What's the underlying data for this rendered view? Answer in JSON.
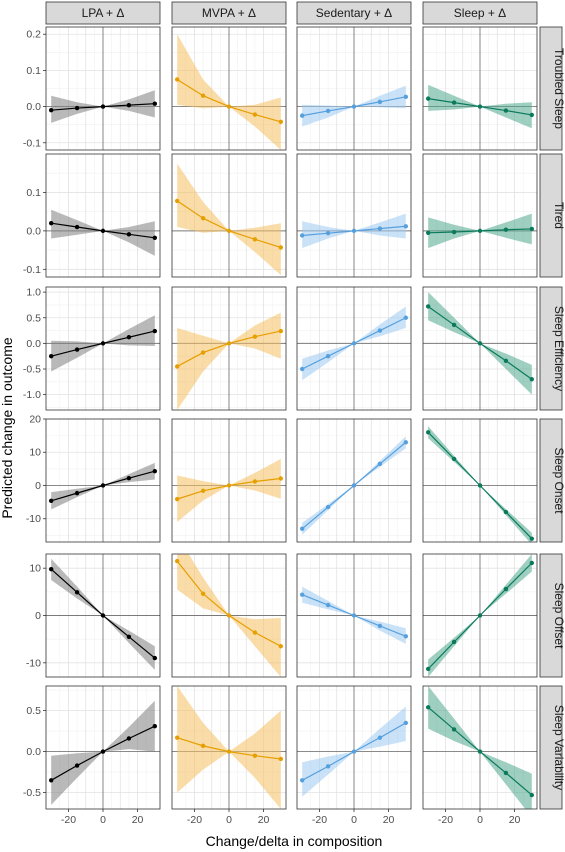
{
  "chart_data": {
    "type": "line",
    "title": "",
    "xlabel": "Change/delta in composition",
    "ylabel": "Predicted change in outcome",
    "x": [
      -30,
      -15,
      0,
      15,
      30
    ],
    "x_ticks": [
      "-20",
      "0",
      "20"
    ],
    "xlim": [
      -33,
      33
    ],
    "grid": true,
    "legend": "none",
    "columns": [
      {
        "label": "LPA + Δ",
        "color": "#000000",
        "ribbon_color": "#808080"
      },
      {
        "label": "MVPA + Δ",
        "color": "#E69F00",
        "ribbon_color": "#F5C060"
      },
      {
        "label": "Sedentary + Δ",
        "color": "#56A0DE",
        "ribbon_color": "#9ECAF2"
      },
      {
        "label": "Sleep + Δ",
        "color": "#0B7A5C",
        "ribbon_color": "#4FA88C"
      }
    ],
    "rows": [
      {
        "label": "Troubled Sleep",
        "ylim": [
          -0.12,
          0.22
        ],
        "y_ticks": [
          "0.2",
          "0.1",
          "0.0",
          "-0.1"
        ],
        "series": [
          {
            "values": [
              -0.01,
              -0.004,
              0,
              0.004,
              0.008
            ],
            "lower": [
              -0.045,
              -0.02,
              0,
              -0.012,
              -0.03
            ],
            "upper": [
              0.03,
              0.012,
              0,
              0.02,
              0.045
            ]
          },
          {
            "values": [
              0.075,
              0.03,
              0,
              -0.022,
              -0.042
            ],
            "lower": [
              0.005,
              -0.005,
              0,
              -0.055,
              -0.12
            ],
            "upper": [
              0.2,
              0.075,
              0,
              0.005,
              0.025
            ]
          },
          {
            "values": [
              -0.025,
              -0.012,
              0,
              0.013,
              0.027
            ],
            "lower": [
              -0.055,
              -0.03,
              0,
              -0.002,
              -0.005
            ],
            "upper": [
              0.005,
              0.003,
              0,
              0.03,
              0.058
            ]
          },
          {
            "values": [
              0.022,
              0.011,
              0,
              -0.011,
              -0.023
            ],
            "lower": [
              -0.012,
              -0.008,
              0,
              -0.03,
              -0.06
            ],
            "upper": [
              0.06,
              0.03,
              0,
              0.008,
              0.012
            ]
          }
        ]
      },
      {
        "label": "Tired",
        "ylim": [
          -0.12,
          0.2
        ],
        "y_ticks": [
          "0.1",
          "0.0",
          "-0.1"
        ],
        "series": [
          {
            "values": [
              0.02,
              0.01,
              0,
              -0.009,
              -0.018
            ],
            "lower": [
              -0.02,
              -0.01,
              0,
              -0.03,
              -0.065
            ],
            "upper": [
              0.055,
              0.028,
              0,
              0.01,
              0.025
            ]
          },
          {
            "values": [
              0.078,
              0.033,
              0,
              -0.022,
              -0.043
            ],
            "lower": [
              0.01,
              -0.005,
              0,
              -0.055,
              -0.115
            ],
            "upper": [
              0.175,
              0.075,
              0,
              0.008,
              0.02
            ]
          },
          {
            "values": [
              -0.012,
              -0.006,
              0,
              0.006,
              0.012
            ],
            "lower": [
              -0.045,
              -0.02,
              0,
              -0.012,
              -0.02
            ],
            "upper": [
              0.025,
              0.01,
              0,
              0.022,
              0.045
            ]
          },
          {
            "values": [
              -0.005,
              -0.003,
              0,
              0.003,
              0.005
            ],
            "lower": [
              -0.045,
              -0.02,
              0,
              -0.018,
              -0.035
            ],
            "upper": [
              0.035,
              0.016,
              0,
              0.022,
              0.045
            ]
          }
        ]
      },
      {
        "label": "Sleep Efficiency",
        "ylim": [
          -1.3,
          1.1
        ],
        "y_ticks": [
          "1.0",
          "0.5",
          "0.0",
          "-0.5",
          "-1.0"
        ],
        "series": [
          {
            "values": [
              -0.25,
              -0.12,
              0,
              0.12,
              0.24
            ],
            "lower": [
              -0.55,
              -0.28,
              0,
              -0.04,
              -0.05
            ],
            "upper": [
              0.05,
              0.04,
              0,
              0.28,
              0.55
            ]
          },
          {
            "values": [
              -0.45,
              -0.18,
              0,
              0.13,
              0.24
            ],
            "lower": [
              -1.3,
              -0.55,
              0,
              -0.1,
              -0.3
            ],
            "upper": [
              0.3,
              0.15,
              0,
              0.35,
              0.6
            ]
          },
          {
            "values": [
              -0.5,
              -0.25,
              0,
              0.25,
              0.5
            ],
            "lower": [
              -0.72,
              -0.37,
              0,
              0.14,
              0.3
            ],
            "upper": [
              -0.3,
              -0.14,
              0,
              0.37,
              0.72
            ]
          },
          {
            "values": [
              0.72,
              0.36,
              0,
              -0.34,
              -0.7
            ],
            "lower": [
              0.45,
              0.22,
              0,
              -0.5,
              -1.0
            ],
            "upper": [
              1.0,
              0.5,
              0,
              -0.2,
              -0.42
            ]
          }
        ]
      },
      {
        "label": "Sleep Onset",
        "ylim": [
          -17,
          20
        ],
        "y_ticks": [
          "20",
          "10",
          "0",
          "-10"
        ],
        "series": [
          {
            "values": [
              -4.6,
              -2.3,
              0,
              2.2,
              4.3
            ],
            "lower": [
              -7.2,
              -3.5,
              0,
              1.0,
              1.8
            ],
            "upper": [
              -2,
              -1.0,
              0,
              3.4,
              6.8
            ]
          },
          {
            "values": [
              -4.1,
              -1.6,
              0,
              1.2,
              2.1
            ],
            "lower": [
              -11,
              -4.5,
              0,
              -1.5,
              -4
            ],
            "upper": [
              3,
              1.3,
              0,
              3.8,
              8
            ]
          },
          {
            "values": [
              -13,
              -6.5,
              0,
              6.5,
              13
            ],
            "lower": [
              -14.8,
              -7.4,
              0,
              5.6,
              11.2
            ],
            "upper": [
              -11.2,
              -5.6,
              0,
              7.4,
              14.8
            ]
          },
          {
            "values": [
              16,
              8,
              0,
              -8,
              -16
            ],
            "lower": [
              14.2,
              7.1,
              0,
              -8.9,
              -17.8
            ],
            "upper": [
              17.8,
              8.9,
              0,
              -7.1,
              -14.2
            ]
          }
        ]
      },
      {
        "label": "Sleep Offset",
        "ylim": [
          -13,
          13
        ],
        "y_ticks": [
          "10",
          "0",
          "-10"
        ],
        "series": [
          {
            "values": [
              9.8,
              4.9,
              0,
              -4.5,
              -9
            ],
            "lower": [
              7.5,
              3.6,
              0,
              -5.8,
              -11.5
            ],
            "upper": [
              12,
              6.1,
              0,
              -3.2,
              -6.5
            ]
          },
          {
            "values": [
              11.5,
              4.6,
              0,
              -3.6,
              -6.5
            ],
            "lower": [
              5.5,
              1.5,
              0,
              -6.5,
              -13
            ],
            "upper": [
              17,
              8,
              0,
              -0.8,
              -0.5
            ]
          },
          {
            "values": [
              4.4,
              2.2,
              0,
              -2.2,
              -4.4
            ],
            "lower": [
              2.7,
              1.3,
              0,
              -3.2,
              -6
            ],
            "upper": [
              6.1,
              3.1,
              0,
              -1.3,
              -2.7
            ]
          },
          {
            "values": [
              -11.3,
              -5.6,
              0,
              5.6,
              11.1
            ],
            "lower": [
              -13,
              -6.5,
              0,
              4.6,
              9.3
            ],
            "upper": [
              -9.3,
              -4.7,
              0,
              6.5,
              13
            ]
          }
        ]
      },
      {
        "label": "Sleep Variability",
        "ylim": [
          -0.7,
          0.8
        ],
        "y_ticks": [
          "0.5",
          "0.0",
          "-0.5"
        ],
        "series": [
          {
            "values": [
              -0.35,
              -0.17,
              0,
              0.16,
              0.31
            ],
            "lower": [
              -0.65,
              -0.32,
              0,
              0.03,
              0.0
            ],
            "upper": [
              -0.05,
              -0.02,
              0,
              0.3,
              0.62
            ]
          },
          {
            "values": [
              0.17,
              0.07,
              0,
              -0.05,
              -0.09
            ],
            "lower": [
              -0.5,
              -0.22,
              0,
              -0.32,
              -0.7
            ],
            "upper": [
              0.8,
              0.35,
              0,
              0.22,
              0.5
            ]
          },
          {
            "values": [
              -0.35,
              -0.18,
              0,
              0.17,
              0.35
            ],
            "lower": [
              -0.55,
              -0.28,
              0,
              0.06,
              0.13
            ],
            "upper": [
              -0.13,
              -0.06,
              0,
              0.28,
              0.55
            ]
          },
          {
            "values": [
              0.54,
              0.27,
              0,
              -0.26,
              -0.53
            ],
            "lower": [
              0.28,
              0.13,
              0,
              -0.4,
              -0.8
            ],
            "upper": [
              0.8,
              0.4,
              0,
              -0.13,
              -0.27
            ]
          }
        ]
      }
    ]
  }
}
